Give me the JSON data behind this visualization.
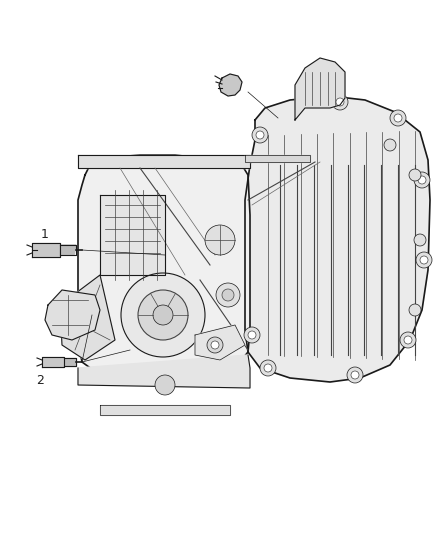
{
  "bg_color": "#ffffff",
  "line_color": "#666666",
  "dark_line": "#1a1a1a",
  "mid_line": "#444444",
  "label_color": "#222222",
  "figsize": [
    4.38,
    5.33
  ],
  "dpi": 100,
  "main_body_fill": "#f0f0f0",
  "right_body_fill": "#ebebeb",
  "component_fill": "#e0e0e0",
  "dark_fill": "#c8c8c8",
  "sensor_fill": "#d5d5d5"
}
